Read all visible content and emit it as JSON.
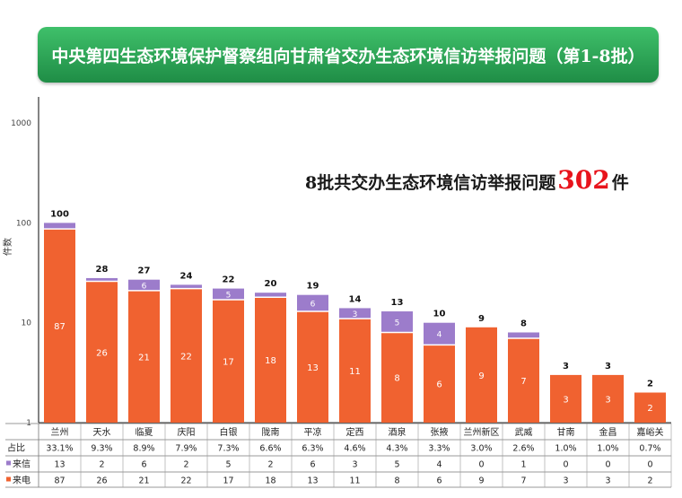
{
  "title": "中央第四生态环境保护督察组向甘肃省交办生态环境信访举报问题（第1-8批）",
  "headline": {
    "prefix": "8批共交办生态环境信访举报问题",
    "number": "302",
    "suffix": "件"
  },
  "colors": {
    "banner": "#2ea457",
    "phone": "#f06230",
    "letter": "#9c7ccb"
  },
  "chart_data": {
    "type": "bar",
    "stacked": true,
    "log_scale": true,
    "ylabel": "件数",
    "ylim": [
      1,
      1000
    ],
    "yticks": [
      "1",
      "10",
      "100",
      "1000"
    ],
    "categories": [
      "兰州",
      "天水",
      "临夏",
      "庆阳",
      "白银",
      "陇南",
      "平凉",
      "定西",
      "酒泉",
      "张掖",
      "兰州新区",
      "武威",
      "甘南",
      "金昌",
      "嘉峪关"
    ],
    "totals": [
      100,
      28,
      27,
      24,
      22,
      20,
      19,
      14,
      13,
      10,
      9,
      8,
      3,
      3,
      2
    ],
    "series": [
      {
        "name": "来电",
        "values": [
          87,
          26,
          21,
          22,
          17,
          18,
          13,
          11,
          8,
          6,
          9,
          7,
          3,
          3,
          2
        ]
      },
      {
        "name": "来信",
        "values": [
          13,
          2,
          6,
          2,
          5,
          2,
          6,
          3,
          5,
          4,
          0,
          1,
          0,
          0,
          0
        ]
      }
    ],
    "table_rows": [
      {
        "label": "占比",
        "values": [
          "33.1%",
          "9.3%",
          "8.9%",
          "7.9%",
          "7.3%",
          "6.6%",
          "6.3%",
          "4.6%",
          "4.3%",
          "3.3%",
          "3.0%",
          "2.6%",
          "1.0%",
          "1.0%",
          "0.7%"
        ]
      },
      {
        "label": "来信",
        "values": [
          "13",
          "2",
          "6",
          "2",
          "5",
          "2",
          "6",
          "3",
          "5",
          "4",
          "0",
          "1",
          "0",
          "0",
          "0"
        ]
      },
      {
        "label": "来电",
        "values": [
          "87",
          "26",
          "21",
          "22",
          "17",
          "18",
          "13",
          "11",
          "8",
          "6",
          "9",
          "7",
          "3",
          "3",
          "2"
        ]
      }
    ]
  }
}
